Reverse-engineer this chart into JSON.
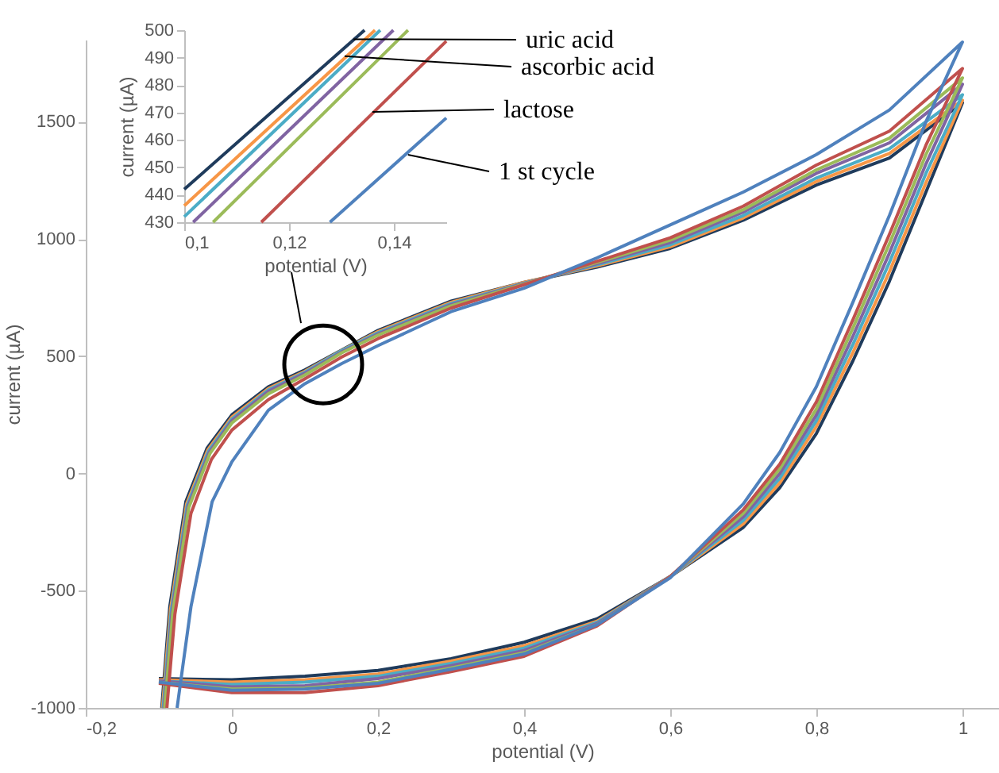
{
  "chart_data": [
    {
      "type": "line",
      "xlabel": "potential (V)",
      "ylabel": "current (µA)",
      "xlim": [
        -0.2,
        1.05
      ],
      "ylim": [
        -1000,
        1850
      ],
      "xticks": [
        {
          "value": -0.2,
          "label": "-0,2"
        },
        0,
        {
          "value": 0.2,
          "label": "0,2"
        },
        {
          "value": 0.4,
          "label": "0,4"
        },
        {
          "value": 0.6,
          "label": "0,6"
        },
        {
          "value": 0.8,
          "label": "0,8"
        },
        1
      ],
      "yticks": [
        -1000,
        -500,
        0,
        500,
        1000,
        1500
      ],
      "grid": false,
      "series": [
        {
          "color": "#1f3b5c",
          "x": [
            -0.1,
            0,
            0.1,
            0.2,
            0.3,
            0.4,
            0.5,
            0.6,
            0.7,
            0.75,
            0.8,
            0.85,
            0.9,
            0.95,
            1.0,
            0.9,
            0.8,
            0.7,
            0.6,
            0.5,
            0.4,
            0.3,
            0.2,
            0.15,
            0.1,
            0.05,
            0.0,
            -0.034,
            -0.063,
            -0.085,
            -0.096
          ],
          "values": [
            -875,
            -880,
            -865,
            -840,
            -790,
            -720,
            -620,
            -440,
            -230,
            -60,
            170,
            480,
            820,
            1200,
            1581,
            1345,
            1230,
            1080,
            960,
            880,
            815,
            735,
            610,
            526,
            442,
            370,
            250,
            108,
            -120,
            -568,
            -1000
          ]
        },
        {
          "color": "#f79646",
          "x": [
            -0.1,
            0,
            0.1,
            0.2,
            0.3,
            0.4,
            0.5,
            0.6,
            0.7,
            0.75,
            0.8,
            0.85,
            0.9,
            0.95,
            1.0,
            0.9,
            0.8,
            0.7,
            0.6,
            0.5,
            0.4,
            0.3,
            0.2,
            0.15,
            0.1,
            0.05,
            0.0,
            -0.033,
            -0.062,
            -0.084,
            -0.095
          ],
          "values": [
            -880,
            -890,
            -880,
            -855,
            -800,
            -735,
            -630,
            -440,
            -215,
            -40,
            200,
            515,
            860,
            1240,
            1592,
            1365,
            1245,
            1090,
            967,
            885,
            815,
            730,
            605,
            524,
            436,
            362,
            240,
            100,
            -130,
            -580,
            -1000
          ]
        },
        {
          "color": "#4bacc6",
          "x": [
            -0.1,
            0,
            0.1,
            0.2,
            0.3,
            0.4,
            0.5,
            0.6,
            0.7,
            0.75,
            0.8,
            0.85,
            0.9,
            0.95,
            1.0,
            0.9,
            0.8,
            0.7,
            0.6,
            0.5,
            0.4,
            0.3,
            0.2,
            0.15,
            0.1,
            0.05,
            0.0,
            -0.032,
            -0.061,
            -0.083,
            -0.094
          ],
          "values": [
            -885,
            -900,
            -890,
            -865,
            -810,
            -745,
            -635,
            -440,
            -200,
            -20,
            225,
            550,
            900,
            1280,
            1615,
            1385,
            1260,
            1100,
            975,
            890,
            812,
            725,
            600,
            523,
            432,
            356,
            232,
            95,
            -135,
            -585,
            -1000
          ]
        },
        {
          "color": "#8064a2",
          "x": [
            -0.1,
            0,
            0.1,
            0.2,
            0.3,
            0.4,
            0.5,
            0.6,
            0.7,
            0.75,
            0.8,
            0.85,
            0.9,
            0.95,
            1.0,
            0.9,
            0.8,
            0.7,
            0.6,
            0.5,
            0.4,
            0.3,
            0.2,
            0.15,
            0.1,
            0.05,
            0.0,
            -0.031,
            -0.06,
            -0.082,
            -0.093
          ],
          "values": [
            -885,
            -910,
            -905,
            -875,
            -820,
            -755,
            -640,
            -440,
            -185,
            0,
            250,
            585,
            940,
            1320,
            1660,
            1410,
            1280,
            1115,
            985,
            895,
            810,
            720,
            595,
            518,
            427,
            350,
            225,
            90,
            -140,
            -590,
            -1000
          ]
        },
        {
          "color": "#9bbb59",
          "x": [
            -0.1,
            0,
            0.1,
            0.2,
            0.3,
            0.4,
            0.5,
            0.6,
            0.7,
            0.75,
            0.8,
            0.85,
            0.9,
            0.95,
            1.0,
            0.9,
            0.8,
            0.7,
            0.6,
            0.5,
            0.4,
            0.3,
            0.2,
            0.15,
            0.1,
            0.05,
            0.0,
            -0.03,
            -0.059,
            -0.081,
            -0.092
          ],
          "values": [
            -890,
            -920,
            -915,
            -890,
            -830,
            -765,
            -645,
            -440,
            -170,
            20,
            275,
            620,
            980,
            1360,
            1687,
            1430,
            1295,
            1125,
            995,
            900,
            808,
            715,
            590,
            514,
            420,
            340,
            215,
            85,
            -145,
            -595,
            -1000
          ]
        },
        {
          "color": "#c0504d",
          "x": [
            -0.1,
            0,
            0.1,
            0.2,
            0.3,
            0.4,
            0.5,
            0.6,
            0.7,
            0.75,
            0.8,
            0.85,
            0.9,
            0.95,
            1.0,
            0.9,
            0.8,
            0.7,
            0.6,
            0.5,
            0.4,
            0.3,
            0.2,
            0.15,
            0.1,
            0.05,
            0.0,
            -0.028,
            -0.056,
            -0.078,
            -0.089
          ],
          "values": [
            -895,
            -935,
            -935,
            -905,
            -845,
            -780,
            -650,
            -440,
            -155,
            40,
            305,
            655,
            1020,
            1400,
            1727,
            1460,
            1315,
            1140,
            1005,
            905,
            805,
            705,
            575,
            496,
            404,
            315,
            185,
            60,
            -170,
            -600,
            -1000
          ]
        },
        {
          "color": "#4f81bd",
          "x": [
            -0.1,
            0,
            0.1,
            0.2,
            0.3,
            0.4,
            0.5,
            0.6,
            0.7,
            0.75,
            0.8,
            0.85,
            0.9,
            0.95,
            1.0,
            0.9,
            0.8,
            0.7,
            0.6,
            0.5,
            0.4,
            0.3,
            0.2,
            0.15,
            0.1,
            0.05,
            0.0,
            -0.027,
            -0.056,
            -0.075
          ],
          "values": [
            -890,
            -925,
            -920,
            -895,
            -835,
            -770,
            -645,
            -445,
            -130,
            90,
            370,
            730,
            1100,
            1500,
            1840,
            1550,
            1360,
            1200,
            1060,
            920,
            790,
            690,
            545,
            468,
            383,
            270,
            50,
            -120,
            -568,
            -1000
          ]
        }
      ]
    },
    {
      "type": "line",
      "xlabel": "potential (V)",
      "ylabel": "current (µA)",
      "xlim": [
        0.1,
        0.15
      ],
      "ylim": [
        430,
        500
      ],
      "xticks": [
        {
          "value": 0.1,
          "label": "0,1"
        },
        {
          "value": 0.12,
          "label": "0,12"
        },
        {
          "value": 0.14,
          "label": "0,14"
        }
      ],
      "yticks": [
        430,
        440,
        450,
        460,
        470,
        480,
        490,
        500
      ],
      "grid": false,
      "series": [
        {
          "color": "#1f3b5c",
          "x": [
            0.1,
            0.1344
          ],
          "values": [
            442,
            500
          ]
        },
        {
          "color": "#f79646",
          "x": [
            0.1,
            0.1364
          ],
          "values": [
            436,
            500
          ]
        },
        {
          "color": "#4bacc6",
          "x": [
            0.1,
            0.1374
          ],
          "values": [
            432,
            500
          ]
        },
        {
          "color": "#8064a2",
          "x": [
            0.1017,
            0.1399
          ],
          "values": [
            430,
            500
          ]
        },
        {
          "color": "#9bbb59",
          "x": [
            0.1055,
            0.1427
          ],
          "values": [
            430,
            500
          ]
        },
        {
          "color": "#c0504d",
          "x": [
            0.1147,
            0.15
          ],
          "values": [
            430,
            496
          ]
        },
        {
          "color": "#4f81bd",
          "x": [
            0.1278,
            0.15
          ],
          "values": [
            430,
            468
          ]
        }
      ],
      "annotations": [
        {
          "text": "uric acid",
          "x": 0.1323,
          "y": 496.7
        },
        {
          "text": "ascorbic acid",
          "x": 0.1306,
          "y": 490.5
        },
        {
          "text": "lactose",
          "x": 0.1359,
          "y": 470.2
        },
        {
          "text": "1 st cycle",
          "x": 0.1427,
          "y": 454.6
        }
      ]
    }
  ]
}
